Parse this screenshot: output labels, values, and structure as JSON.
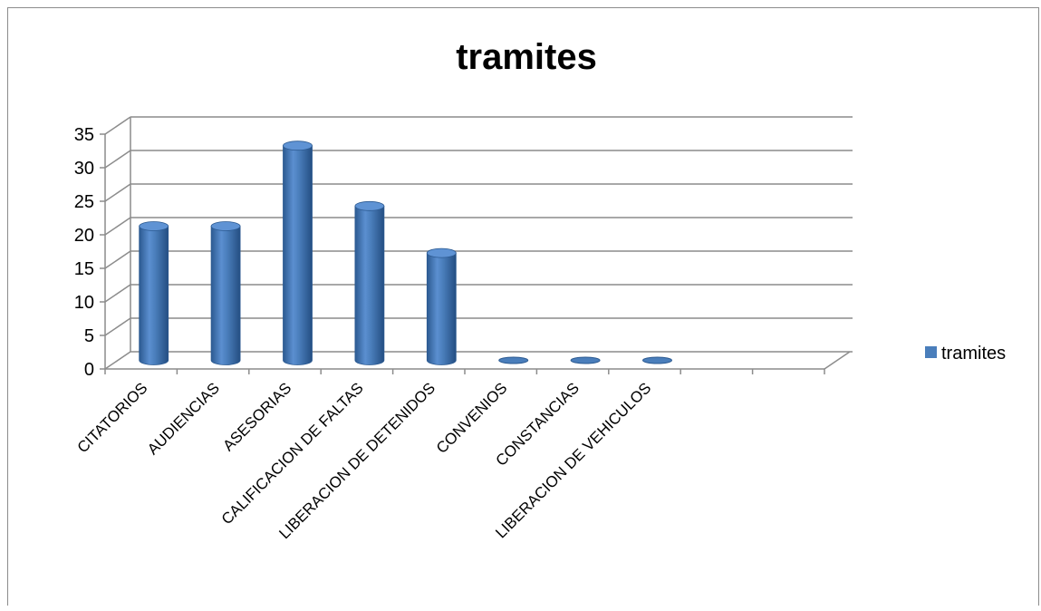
{
  "chart_data": {
    "type": "bar",
    "title": "tramites",
    "xlabel": "",
    "ylabel": "",
    "ylim": [
      0,
      35
    ],
    "yticks": [
      0,
      5,
      10,
      15,
      20,
      25,
      30,
      35
    ],
    "categories": [
      "CITATORIOS",
      "AUDIENCIAS",
      "ASESORIAS",
      "CALIFICACION DE FALTAS",
      "LIBERACION DE DETENIDOS",
      "CONVENIOS",
      "CONSTANCIAS",
      "LIBERACION DE VEHICULOS",
      "",
      ""
    ],
    "series": [
      {
        "name": "tramites",
        "values": [
          20,
          20,
          32,
          23,
          16,
          0,
          0,
          0,
          null,
          null
        ]
      }
    ],
    "grid": true,
    "legend": "right",
    "style": "3d-cylinder",
    "colors": {
      "bar": "#4a7ebb",
      "bar_dark": "#2c5a91",
      "grid": "#8c8c8c"
    }
  }
}
